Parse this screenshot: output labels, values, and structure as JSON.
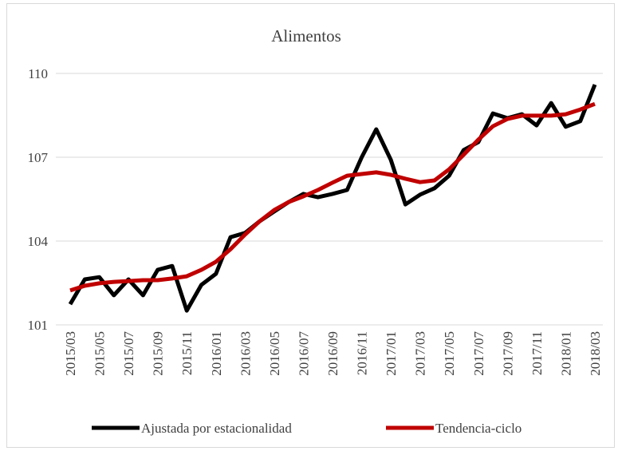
{
  "chart_data": {
    "type": "line",
    "title": "Alimentos",
    "categories": [
      "2015/03",
      null,
      "2015/05",
      null,
      "2015/07",
      null,
      "2015/09",
      null,
      "2015/11",
      null,
      "2016/01",
      null,
      "2016/03",
      null,
      "2016/05",
      null,
      "2016/07",
      null,
      "2016/09",
      null,
      "2016/11",
      null,
      "2017/01",
      null,
      "2017/03",
      null,
      "2017/05",
      null,
      "2017/07",
      null,
      "2017/09",
      null,
      "2017/11",
      null,
      "2018/01",
      null,
      "2018/03"
    ],
    "series": [
      {
        "name": "Ajustada por estacionalidad",
        "color": "#000000",
        "values": [
          101.74,
          102.63,
          102.71,
          102.06,
          102.63,
          102.06,
          102.97,
          103.11,
          101.51,
          102.43,
          102.83,
          104.14,
          104.29,
          104.71,
          105.06,
          105.4,
          105.69,
          105.57,
          105.69,
          105.83,
          107.0,
          108.0,
          106.91,
          105.31,
          105.66,
          105.89,
          106.34,
          107.26,
          107.54,
          108.57,
          108.4,
          108.54,
          108.14,
          108.94,
          108.09,
          108.29,
          109.6
        ]
      },
      {
        "name": "Tendencia-ciclo",
        "color": "#c00000",
        "values": [
          102.23,
          102.4,
          102.49,
          102.54,
          102.57,
          102.6,
          102.6,
          102.66,
          102.74,
          102.97,
          103.26,
          103.71,
          104.23,
          104.71,
          105.11,
          105.4,
          105.6,
          105.83,
          106.09,
          106.34,
          106.4,
          106.46,
          106.37,
          106.23,
          106.11,
          106.17,
          106.57,
          107.09,
          107.63,
          108.11,
          108.37,
          108.49,
          108.49,
          108.49,
          108.54,
          108.71,
          108.91
        ]
      }
    ],
    "ylim": [
      101,
      110
    ],
    "yticks": [
      101,
      104,
      107,
      110
    ],
    "grid": true,
    "legend": "bottom"
  }
}
